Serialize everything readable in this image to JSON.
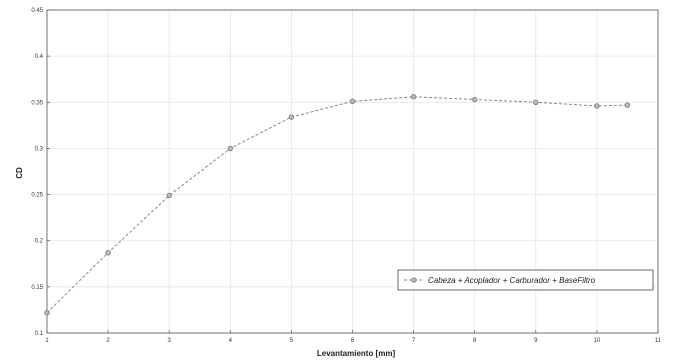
{
  "chart_data": {
    "type": "line",
    "xlabel": "Levantamiento [mm]",
    "ylabel": "CD",
    "xlim": [
      1,
      11
    ],
    "ylim": [
      0.1,
      0.45
    ],
    "x_ticks": [
      1,
      2,
      3,
      4,
      5,
      6,
      7,
      8,
      9,
      10,
      11
    ],
    "y_ticks": [
      0.1,
      0.15,
      0.2,
      0.25,
      0.3,
      0.35,
      0.4,
      0.45
    ],
    "grid": true,
    "legend_position": "lower-right",
    "series": [
      {
        "name": "Cabeza + Acoplador + Carburador + BaseFiltro",
        "color": "#888888",
        "line_style": "dashed",
        "marker": "circle",
        "x": [
          1,
          2,
          3,
          4,
          5,
          6,
          7,
          8,
          9,
          10,
          10.5
        ],
        "y": [
          0.122,
          0.187,
          0.249,
          0.3,
          0.334,
          0.351,
          0.356,
          0.353,
          0.35,
          0.346,
          0.347
        ]
      }
    ]
  }
}
